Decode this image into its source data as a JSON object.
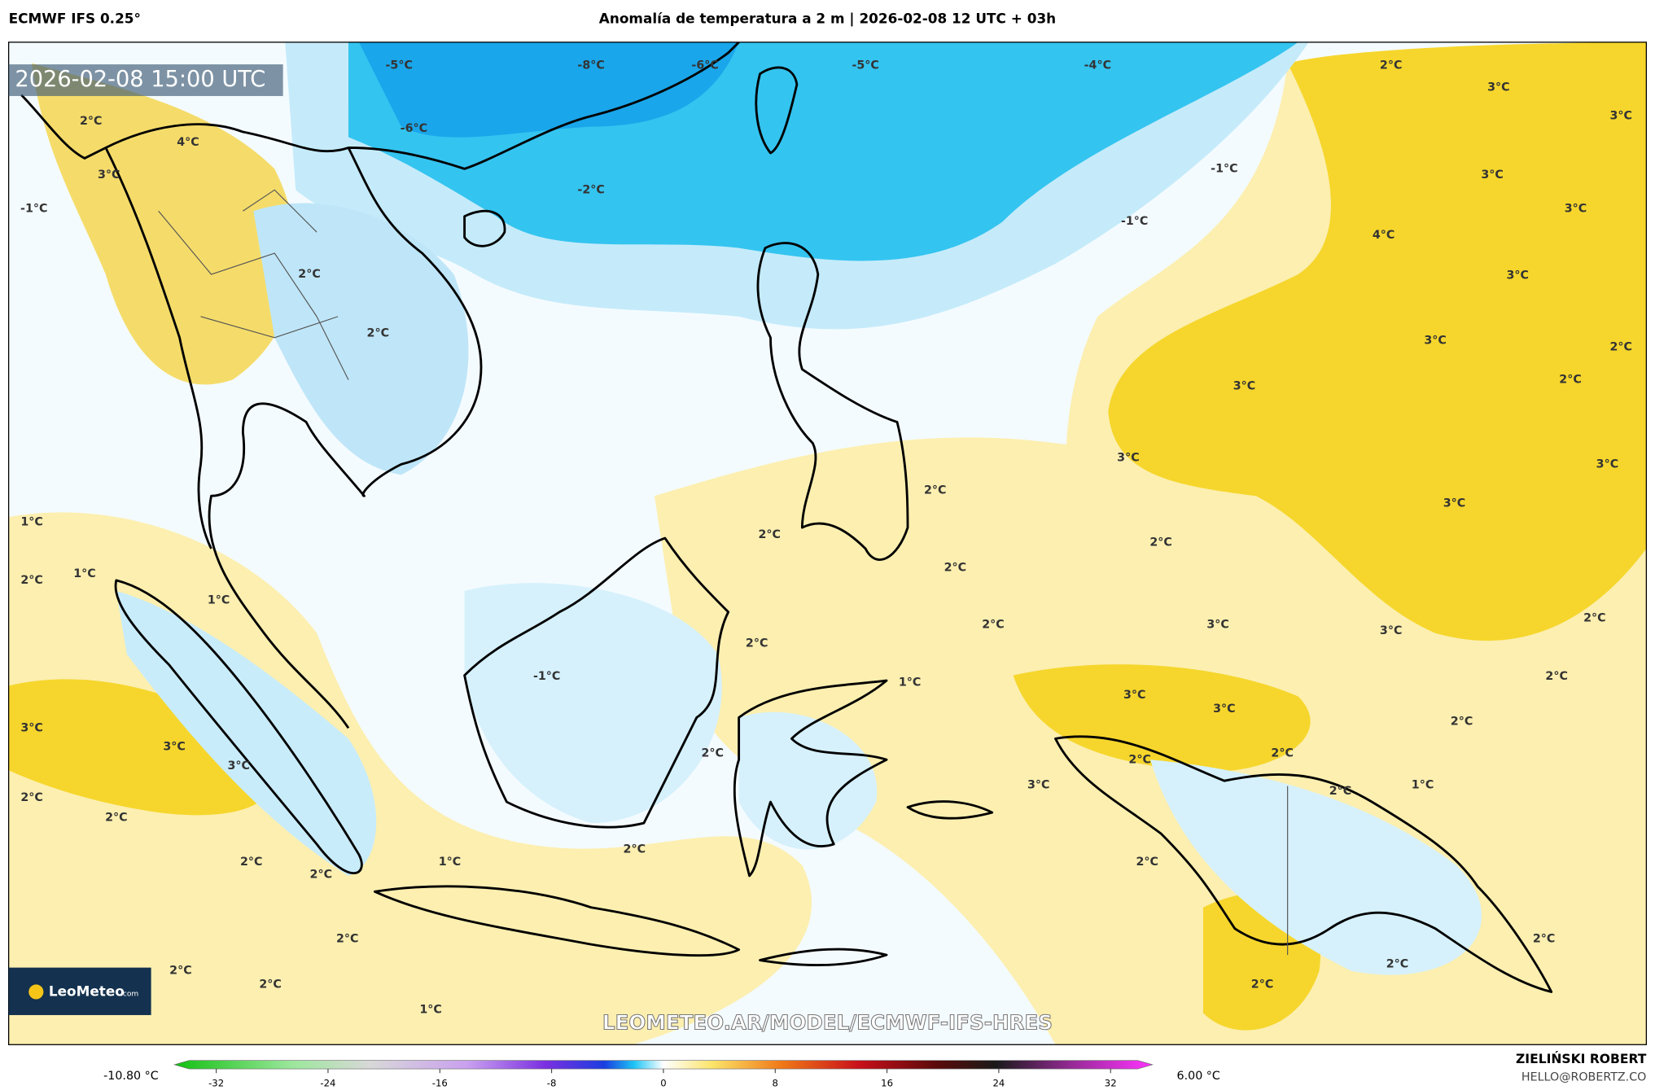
{
  "header": {
    "model": "ECMWF IFS 0.25°",
    "title": "Anomalía de temperatura a 2 m | 2026-02-08 12 UTC + 03h"
  },
  "timestamp": "2026-02-08 15:00 UTC",
  "contour_labels": [
    "-5°C",
    "-8°C",
    "-6°C",
    "-5°C",
    "-4°C",
    "2°C",
    "3°C",
    "3°C",
    "-6°C",
    "2°C",
    "4°C",
    "-2°C",
    "-1°C",
    "-1°C",
    "3°C",
    "3°C",
    "-1°C",
    "3°C",
    "4°C",
    "3°C",
    "2°C",
    "2°C",
    "3°C",
    "2°C",
    "3°C",
    "2°C",
    "3°C",
    "3°C",
    "2°C",
    "3°C",
    "1°C",
    "2°C",
    "2°C",
    "2°C",
    "2°C",
    "1°C",
    "1°C",
    "2°C",
    "3°C",
    "3°C",
    "2°C",
    "2°C",
    "-1°C",
    "1°C",
    "2°C",
    "3°C",
    "3°C",
    "2°C",
    "3°C",
    "3°C",
    "3°C",
    "2°C",
    "2°C",
    "2°C",
    "2°C",
    "3°C",
    "2°C",
    "1°C",
    "2°C",
    "2°C",
    "1°C",
    "2°C",
    "2°C",
    "2°C",
    "2°C",
    "2°C",
    "2°C",
    "2°C",
    "2°C",
    "2°C",
    "1°C"
  ],
  "watermark": "LEOMETEO.AR/MODEL/ECMWF-IFS-HRES",
  "logo": {
    "name": "LeoMeteo",
    "suffix": ".com"
  },
  "colorbar": {
    "min_label": "-10.80 °C",
    "max_label": "6.00 °C",
    "lim": [
      -35,
      35
    ],
    "ticks": [
      -32,
      -24,
      -16,
      -8,
      0,
      8,
      16,
      24,
      32
    ]
  },
  "credit": {
    "author": "ZIELIŃSKI ROBERT",
    "email": "HELLO@ROBERTZ.CO"
  }
}
